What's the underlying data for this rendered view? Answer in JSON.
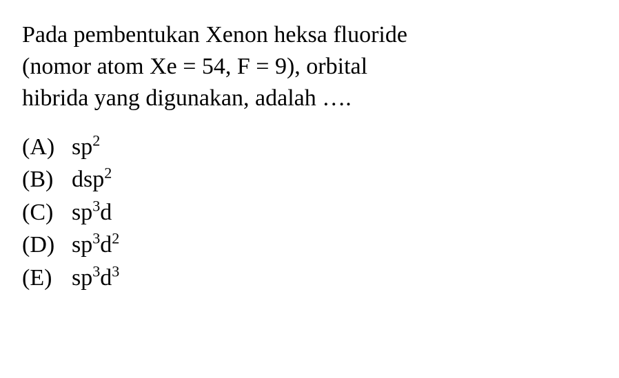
{
  "question": {
    "line1": "Pada pembentukan Xenon heksa fluoride",
    "line2": "(nomor atom Xe = 54, F = 9), orbital",
    "line3": "hibrida yang digunakan, adalah …."
  },
  "options": [
    {
      "label": "(A)",
      "value_html": "sp<sup>2</sup>"
    },
    {
      "label": "(B)",
      "value_html": "dsp<sup>2</sup>"
    },
    {
      "label": "(C)",
      "value_html": "sp<sup>3</sup>d"
    },
    {
      "label": "(D)",
      "value_html": "sp<sup>3</sup>d<sup>2</sup>"
    },
    {
      "label": "(E)",
      "value_html": "sp<sup>3</sup>d<sup>3</sup>"
    }
  ],
  "style": {
    "font_family": "Times New Roman",
    "font_size_pt": 26,
    "background_color": "#ffffff",
    "text_color": "#000000"
  }
}
